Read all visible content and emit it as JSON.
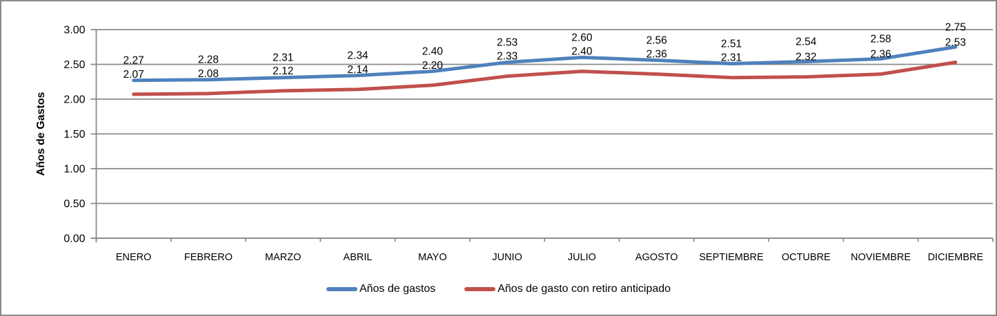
{
  "canvas": {
    "background": "#FFFFFF",
    "border_color": "#898989"
  },
  "chart_data": {
    "type": "line",
    "title": "",
    "xlabel": "",
    "ylabel": "Años de Gastos",
    "categories": [
      "ENERO",
      "FEBRERO",
      "MARZO",
      "ABRIL",
      "MAYO",
      "JUNIO",
      "JULIO",
      "AGOSTO",
      "SEPTIEMBRE",
      "OCTUBRE",
      "NOVIEMBRE",
      "DICIEMBRE"
    ],
    "series": [
      {
        "name": "Años de gastos",
        "color": "#4F81BD",
        "values": [
          2.27,
          2.28,
          2.31,
          2.34,
          2.4,
          2.53,
          2.6,
          2.56,
          2.51,
          2.54,
          2.58,
          2.75
        ]
      },
      {
        "name": "Años de gasto con retiro anticipado",
        "color": "#C0504D",
        "values": [
          2.07,
          2.08,
          2.12,
          2.14,
          2.2,
          2.33,
          2.4,
          2.36,
          2.31,
          2.32,
          2.36,
          2.53
        ]
      }
    ],
    "ylim": [
      0,
      3
    ],
    "yticks": [
      "0.00",
      "0.50",
      "1.00",
      "1.50",
      "2.00",
      "2.50",
      "3.00"
    ],
    "grid": true,
    "data_labels": "above",
    "legend_position": "bottom",
    "axis_color": "#8A8A8A",
    "grid_color": "#8A8A8A",
    "text_color": "#000000"
  }
}
